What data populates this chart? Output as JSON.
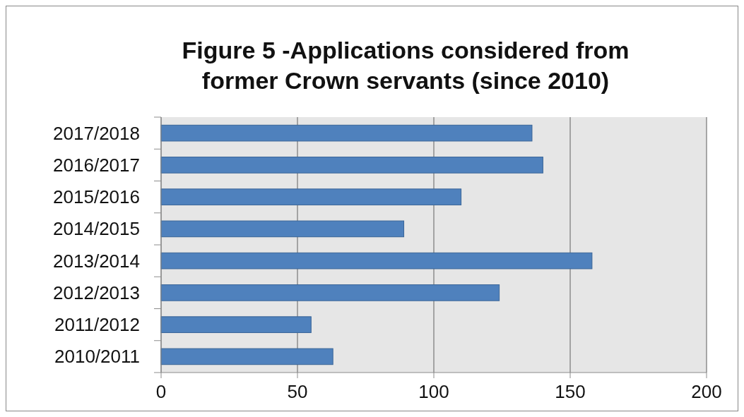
{
  "chart_data": {
    "type": "bar",
    "orientation": "horizontal",
    "title": "Figure 5 -Applications considered from former Crown servants (since 2010)",
    "categories": [
      "2017/2018",
      "2016/2017",
      "2015/2016",
      "2014/2015",
      "2013/2014",
      "2012/2013",
      "2011/2012",
      "2010/2011"
    ],
    "values": [
      136,
      140,
      110,
      89,
      158,
      124,
      55,
      63
    ],
    "color": "#4f81bd",
    "xlim": [
      0,
      200
    ],
    "xticks": [
      0,
      50,
      100,
      150,
      200
    ],
    "grid": "x"
  }
}
